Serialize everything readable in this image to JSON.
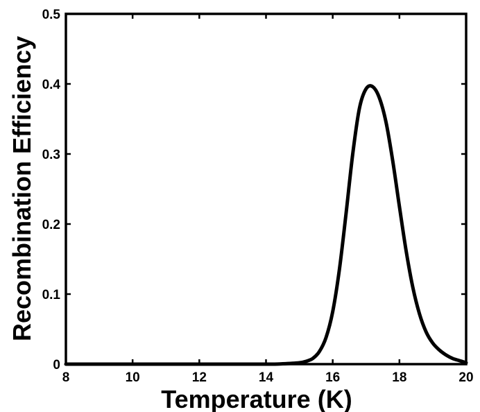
{
  "chart_data": {
    "type": "line",
    "title": "",
    "xlabel": "Temperature (K)",
    "ylabel": "Recombination Efficiency",
    "xlim": [
      8,
      20
    ],
    "ylim": [
      0,
      0.5
    ],
    "xticks": [
      8,
      10,
      12,
      14,
      16,
      18,
      20
    ],
    "yticks": [
      0,
      0.1,
      0.2,
      0.3,
      0.4,
      0.5
    ],
    "xtick_labels": [
      "8",
      "10",
      "12",
      "14",
      "16",
      "18",
      "20"
    ],
    "ytick_labels": [
      "0",
      "0.1",
      "0.2",
      "0.3",
      "0.4",
      "0.5"
    ],
    "grid": false,
    "series": [
      {
        "color": "#000000",
        "x": [
          8,
          10,
          12,
          14,
          14.5,
          15.0,
          15.2,
          15.4,
          15.6,
          15.8,
          16.0,
          16.2,
          16.4,
          16.6,
          16.8,
          17.0,
          17.2,
          17.4,
          17.6,
          17.8,
          18.0,
          18.2,
          18.4,
          18.6,
          18.8,
          19.0,
          19.2,
          19.4,
          19.6,
          19.8,
          20.0
        ],
        "y": [
          0,
          0,
          0,
          0,
          0.0005,
          0.002,
          0.004,
          0.008,
          0.018,
          0.038,
          0.075,
          0.135,
          0.215,
          0.3,
          0.365,
          0.393,
          0.396,
          0.38,
          0.345,
          0.29,
          0.225,
          0.162,
          0.11,
          0.072,
          0.046,
          0.03,
          0.02,
          0.013,
          0.008,
          0.005,
          0.002
        ]
      }
    ]
  }
}
